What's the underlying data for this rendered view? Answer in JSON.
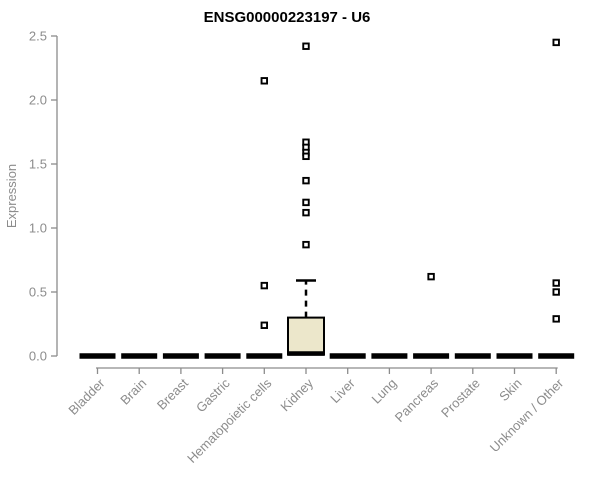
{
  "chart_data": {
    "type": "boxplot",
    "title": "ENSG00000223197 - U6",
    "ylabel": "Expression",
    "ylim": [
      0.0,
      2.5
    ],
    "yticks": [
      "0.0",
      "0.5",
      "1.0",
      "1.5",
      "2.0",
      "2.5"
    ],
    "grid": false,
    "legend": "none",
    "categories": [
      "Bladder",
      "Brain",
      "Breast",
      "Gastric",
      "Hematopoietic cells",
      "Kidney",
      "Liver",
      "Lung",
      "Pancreas",
      "Prostate",
      "Skin",
      "Unknown / Other"
    ],
    "series": [
      {
        "label": "Bladder",
        "q1": 0,
        "median": 0,
        "q3": 0,
        "whisker_low": 0,
        "whisker_high": 0,
        "outliers": []
      },
      {
        "label": "Brain",
        "q1": 0,
        "median": 0,
        "q3": 0,
        "whisker_low": 0,
        "whisker_high": 0,
        "outliers": []
      },
      {
        "label": "Breast",
        "q1": 0,
        "median": 0,
        "q3": 0,
        "whisker_low": 0,
        "whisker_high": 0,
        "outliers": []
      },
      {
        "label": "Gastric",
        "q1": 0,
        "median": 0,
        "q3": 0,
        "whisker_low": 0,
        "whisker_high": 0,
        "outliers": []
      },
      {
        "label": "Hematopoietic cells",
        "q1": 0,
        "median": 0,
        "q3": 0,
        "whisker_low": 0,
        "whisker_high": 0,
        "outliers": [
          2.15,
          0.55,
          0.24
        ]
      },
      {
        "label": "Kidney",
        "q1": 0.01,
        "median": 0.02,
        "q3": 0.3,
        "whisker_low": 0,
        "whisker_high": 0.59,
        "outliers": [
          2.42,
          1.67,
          1.63,
          1.59,
          1.56,
          1.37,
          1.2,
          1.12,
          0.87
        ]
      },
      {
        "label": "Liver",
        "q1": 0,
        "median": 0,
        "q3": 0,
        "whisker_low": 0,
        "whisker_high": 0,
        "outliers": []
      },
      {
        "label": "Lung",
        "q1": 0,
        "median": 0,
        "q3": 0,
        "whisker_low": 0,
        "whisker_high": 0,
        "outliers": []
      },
      {
        "label": "Pancreas",
        "q1": 0,
        "median": 0,
        "q3": 0,
        "whisker_low": 0,
        "whisker_high": 0,
        "outliers": [
          0.62
        ]
      },
      {
        "label": "Prostate",
        "q1": 0,
        "median": 0,
        "q3": 0,
        "whisker_low": 0,
        "whisker_high": 0,
        "outliers": []
      },
      {
        "label": "Skin",
        "q1": 0,
        "median": 0,
        "q3": 0,
        "whisker_low": 0,
        "whisker_high": 0,
        "outliers": []
      },
      {
        "label": "Unknown / Other",
        "q1": 0,
        "median": 0,
        "q3": 0,
        "whisker_low": 0,
        "whisker_high": 0,
        "outliers": [
          2.45,
          0.57,
          0.5,
          0.29
        ]
      }
    ],
    "colors": {
      "box_fill": "#ece7cb",
      "box_stroke": "#000000",
      "median": "#000000",
      "outlier_fill": "#ffffff",
      "outlier_stroke": "#000000",
      "axis": "#8c8c8c",
      "title": "#000000",
      "background": "#ffffff"
    }
  }
}
